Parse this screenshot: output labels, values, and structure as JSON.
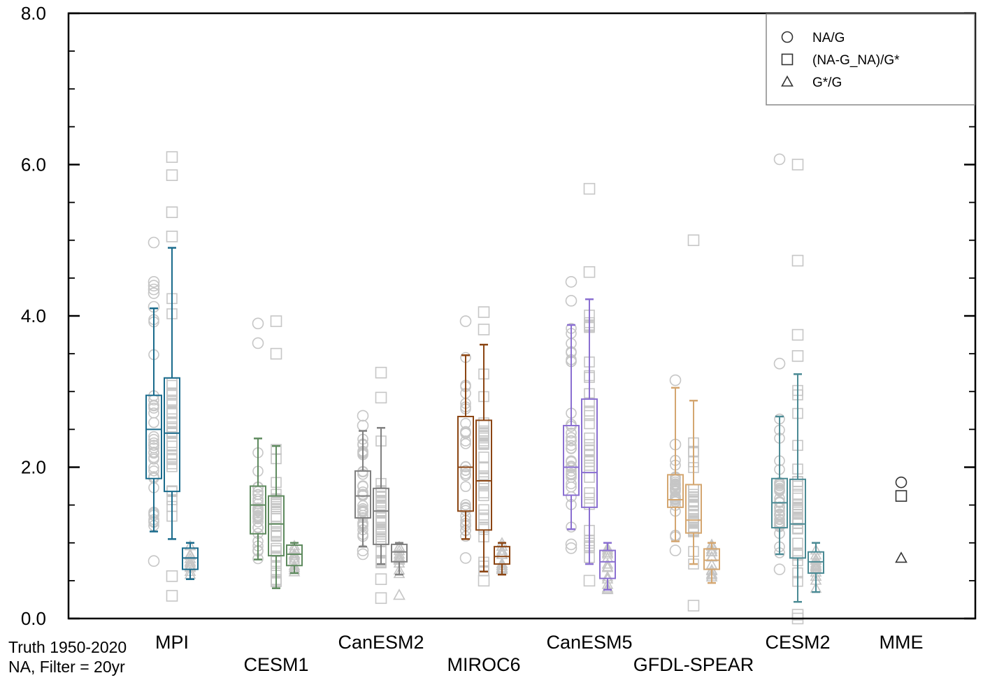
{
  "chart_data": {
    "type": "box",
    "title": "",
    "xlabel": "",
    "ylabel": "",
    "ylim": [
      0,
      8
    ],
    "yticks": [
      "0.0",
      "2.0",
      "4.0",
      "6.0",
      "8.0"
    ],
    "grid": false,
    "legend_position": "top-right",
    "legend": [
      {
        "marker": "circle",
        "label": "NA/G"
      },
      {
        "marker": "square",
        "label": "(NA-G_NA)/G*"
      },
      {
        "marker": "triangle",
        "label": "G*/G"
      }
    ],
    "annotation": [
      "Truth 1950-2020",
      "NA, Filter = 20yr"
    ],
    "models": [
      {
        "name": "MPI",
        "label_row": "upper",
        "color": "#1a6b8c",
        "boxes": [
          {
            "metric": "NA/G",
            "whisker_low": 1.15,
            "q1": 1.85,
            "median": 2.5,
            "q3": 2.95,
            "whisker_high": 4.1
          },
          {
            "metric": "(NA-G_NA)/G*",
            "whisker_low": 1.05,
            "q1": 1.68,
            "median": 2.45,
            "q3": 3.18,
            "whisker_high": 4.9
          },
          {
            "metric": "G*/G",
            "whisker_low": 0.52,
            "q1": 0.65,
            "median": 0.8,
            "q3": 0.93,
            "whisker_high": 1.0
          }
        ],
        "outliers": [
          {
            "metric": "NA/G",
            "values": [
              0.76,
              4.97,
              4.45,
              4.4,
              4.35,
              4.3,
              4.12
            ]
          },
          {
            "metric": "(NA-G_NA)/G*",
            "values": [
              0.3,
              0.56,
              5.05,
              5.37,
              5.86,
              6.1
            ]
          }
        ]
      },
      {
        "name": "CESM1",
        "label_row": "lower",
        "color": "#5e8a5e",
        "boxes": [
          {
            "metric": "NA/G",
            "whisker_low": 0.78,
            "q1": 1.12,
            "median": 1.5,
            "q3": 1.75,
            "whisker_high": 2.38
          },
          {
            "metric": "(NA-G_NA)/G*",
            "whisker_low": 0.4,
            "q1": 0.83,
            "median": 1.25,
            "q3": 1.62,
            "whisker_high": 2.28
          },
          {
            "metric": "G*/G",
            "whisker_low": 0.6,
            "q1": 0.7,
            "median": 0.85,
            "q3": 0.97,
            "whisker_high": 1.0
          }
        ],
        "outliers": [
          {
            "metric": "NA/G",
            "values": [
              3.64,
              3.9
            ]
          },
          {
            "metric": "(NA-G_NA)/G*",
            "values": [
              3.5,
              3.93
            ]
          }
        ]
      },
      {
        "name": "CanESM2",
        "label_row": "upper",
        "color": "#808080",
        "boxes": [
          {
            "metric": "NA/G",
            "whisker_low": 0.95,
            "q1": 1.33,
            "median": 1.62,
            "q3": 1.95,
            "whisker_high": 2.48
          },
          {
            "metric": "(NA-G_NA)/G*",
            "whisker_low": 0.72,
            "q1": 0.98,
            "median": 1.42,
            "q3": 1.72,
            "whisker_high": 2.52
          },
          {
            "metric": "G*/G",
            "whisker_low": 0.58,
            "q1": 0.75,
            "median": 0.88,
            "q3": 0.98,
            "whisker_high": 1.0
          }
        ],
        "outliers": [
          {
            "metric": "NA/G",
            "values": [
              0.85,
              0.9,
              2.55,
              2.68
            ]
          },
          {
            "metric": "(NA-G_NA)/G*",
            "values": [
              0.27,
              0.52,
              2.92,
              3.25
            ]
          },
          {
            "metric": "G*/G",
            "values": [
              0.31
            ]
          }
        ]
      },
      {
        "name": "MIROC6",
        "label_row": "lower",
        "color": "#8b4513",
        "boxes": [
          {
            "metric": "NA/G",
            "whisker_low": 1.05,
            "q1": 1.42,
            "median": 2.0,
            "q3": 2.67,
            "whisker_high": 3.48
          },
          {
            "metric": "(NA-G_NA)/G*",
            "whisker_low": 0.62,
            "q1": 1.17,
            "median": 1.82,
            "q3": 2.62,
            "whisker_high": 3.62
          },
          {
            "metric": "G*/G",
            "whisker_low": 0.58,
            "q1": 0.72,
            "median": 0.82,
            "q3": 0.95,
            "whisker_high": 1.0
          }
        ],
        "outliers": [
          {
            "metric": "NA/G",
            "values": [
              0.8,
              3.93
            ]
          },
          {
            "metric": "(NA-G_NA)/G*",
            "values": [
              0.5,
              3.82,
              4.05
            ]
          }
        ]
      },
      {
        "name": "CanESM5",
        "label_row": "upper",
        "color": "#8a6fd1",
        "boxes": [
          {
            "metric": "NA/G",
            "whisker_low": 1.18,
            "q1": 1.63,
            "median": 2.0,
            "q3": 2.55,
            "whisker_high": 3.88
          },
          {
            "metric": "(NA-G_NA)/G*",
            "whisker_low": 0.72,
            "q1": 1.47,
            "median": 1.93,
            "q3": 2.9,
            "whisker_high": 4.22
          },
          {
            "metric": "G*/G",
            "whisker_low": 0.38,
            "q1": 0.53,
            "median": 0.75,
            "q3": 0.9,
            "whisker_high": 1.0
          }
        ],
        "outliers": [
          {
            "metric": "NA/G",
            "values": [
              0.93,
              0.98,
              4.2,
              4.45
            ]
          },
          {
            "metric": "(NA-G_NA)/G*",
            "values": [
              0.5,
              4.58,
              5.68
            ]
          }
        ]
      },
      {
        "name": "GFDL-SPEAR",
        "label_row": "lower",
        "color": "#d4a670",
        "boxes": [
          {
            "metric": "NA/G",
            "whisker_low": 1.02,
            "q1": 1.47,
            "median": 1.57,
            "q3": 1.9,
            "whisker_high": 3.05
          },
          {
            "metric": "(NA-G_NA)/G*",
            "whisker_low": 0.72,
            "q1": 1.13,
            "median": 1.3,
            "q3": 1.77,
            "whisker_high": 2.88
          },
          {
            "metric": "G*/G",
            "whisker_low": 0.47,
            "q1": 0.65,
            "median": 0.77,
            "q3": 0.92,
            "whisker_high": 1.0
          }
        ],
        "outliers": [
          {
            "metric": "NA/G",
            "values": [
              0.9,
              2.3,
              3.15
            ]
          },
          {
            "metric": "(NA-G_NA)/G*",
            "values": [
              0.17,
              5.0
            ]
          }
        ]
      },
      {
        "name": "CESM2",
        "label_row": "upper",
        "color": "#4a8a94",
        "boxes": [
          {
            "metric": "NA/G",
            "whisker_low": 0.85,
            "q1": 1.2,
            "median": 1.53,
            "q3": 1.85,
            "whisker_high": 2.67
          },
          {
            "metric": "(NA-G_NA)/G*",
            "whisker_low": 0.22,
            "q1": 0.8,
            "median": 1.25,
            "q3": 1.84,
            "whisker_high": 3.23
          },
          {
            "metric": "G*/G",
            "whisker_low": 0.35,
            "q1": 0.6,
            "median": 0.75,
            "q3": 0.88,
            "whisker_high": 1.0
          }
        ],
        "outliers": [
          {
            "metric": "NA/G",
            "values": [
              0.65,
              3.37,
              6.07
            ]
          },
          {
            "metric": "(NA-G_NA)/G*",
            "values": [
              0.0,
              0.05,
              3.47,
              3.75,
              4.73,
              6.0
            ]
          }
        ]
      },
      {
        "name": "MME",
        "label_row": "upper",
        "color": "#333333",
        "boxes": [],
        "points": [
          {
            "metric": "NA/G",
            "value": 1.8
          },
          {
            "metric": "(NA-G_NA)/G*",
            "value": 1.62
          },
          {
            "metric": "G*/G",
            "value": 0.8
          }
        ]
      }
    ]
  }
}
